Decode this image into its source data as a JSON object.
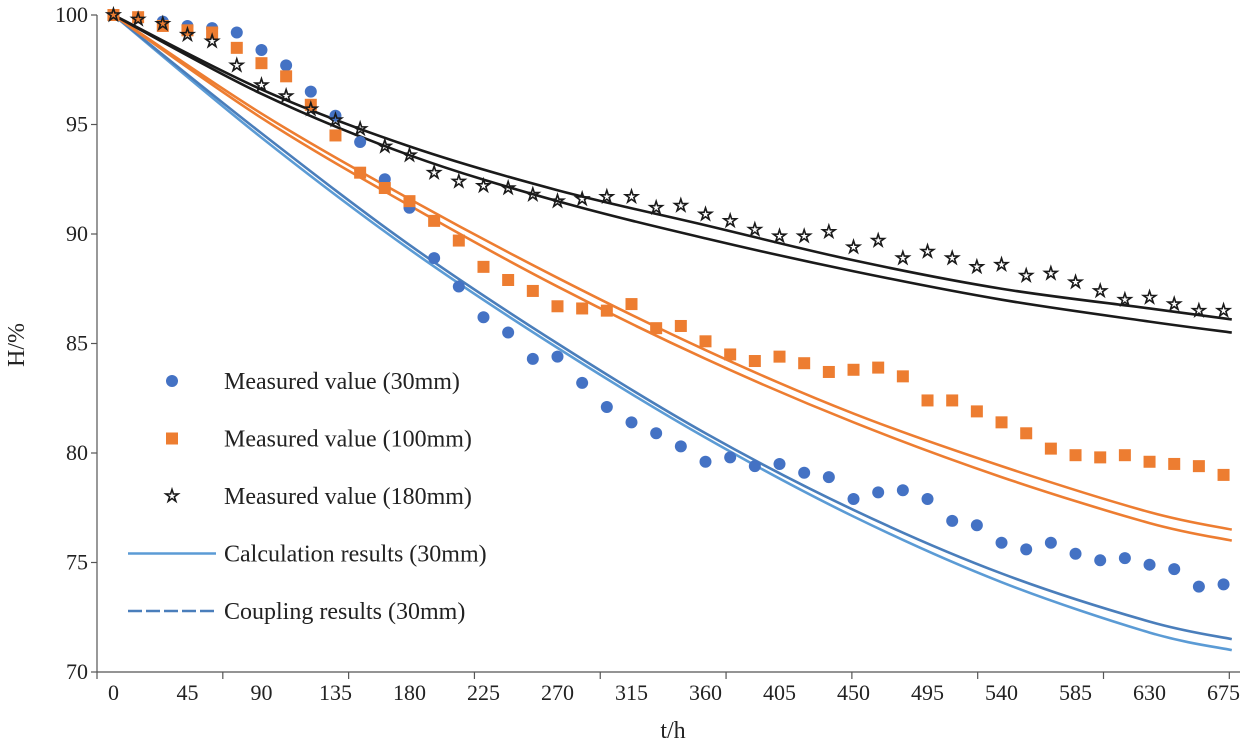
{
  "chart_data": {
    "type": "scatter",
    "xlabel": "t/h",
    "ylabel": "H/%",
    "xlim": [
      -10,
      685
    ],
    "ylim": [
      70,
      100
    ],
    "xticks": [
      0,
      45,
      90,
      135,
      180,
      225,
      270,
      315,
      360,
      405,
      450,
      495,
      540,
      585,
      630,
      675
    ],
    "xtick_labels": [
      "0",
      "45",
      "90",
      "135",
      "180",
      "225",
      "270",
      "315",
      "360",
      "405",
      "450",
      "495",
      "540",
      "585",
      "630",
      "675"
    ],
    "yticks": [
      70,
      75,
      80,
      85,
      90,
      95,
      100
    ],
    "ytick_labels": [
      "70",
      "75",
      "80",
      "85",
      "90",
      "95",
      "100"
    ],
    "grid": false,
    "legend_position": "left-center",
    "measured": [
      {
        "name": "Measured value (30mm)",
        "marker": "circle",
        "color": "#4472C4",
        "x": [
          0,
          15,
          30,
          45,
          60,
          75,
          90,
          105,
          120,
          135,
          150,
          165,
          180,
          195,
          210,
          225,
          240,
          255,
          270,
          285,
          300,
          315,
          330,
          345,
          360,
          375,
          390,
          405,
          420,
          435,
          450,
          465,
          480,
          495,
          510,
          525,
          540,
          555,
          570,
          585,
          600,
          615,
          630,
          645,
          660,
          675
        ],
        "y": [
          100,
          99.9,
          99.7,
          99.5,
          99.4,
          99.2,
          98.4,
          97.7,
          96.5,
          95.4,
          94.2,
          92.5,
          91.2,
          88.9,
          87.6,
          86.2,
          85.5,
          84.3,
          84.4,
          83.2,
          82.1,
          81.4,
          80.9,
          80.3,
          79.6,
          79.8,
          79.4,
          79.5,
          79.1,
          78.9,
          77.9,
          78.2,
          78.3,
          77.9,
          76.9,
          76.7,
          75.9,
          75.6,
          75.9,
          75.4,
          75.1,
          75.2,
          74.9,
          74.7,
          73.9,
          74.0
        ]
      },
      {
        "name": "Measured value (100mm)",
        "marker": "square",
        "color": "#ED7D31",
        "x": [
          0,
          15,
          30,
          45,
          60,
          75,
          90,
          105,
          120,
          135,
          150,
          165,
          180,
          195,
          210,
          225,
          240,
          255,
          270,
          285,
          300,
          315,
          330,
          345,
          360,
          375,
          390,
          405,
          420,
          435,
          450,
          465,
          480,
          495,
          510,
          525,
          540,
          555,
          570,
          585,
          600,
          615,
          630,
          645,
          660,
          675
        ],
        "y": [
          100,
          99.9,
          99.5,
          99.3,
          99.2,
          98.5,
          97.8,
          97.2,
          95.9,
          94.5,
          92.8,
          92.1,
          91.5,
          90.6,
          89.7,
          88.5,
          87.9,
          87.4,
          86.7,
          86.6,
          86.5,
          86.8,
          85.7,
          85.8,
          85.1,
          84.5,
          84.2,
          84.4,
          84.1,
          83.7,
          83.8,
          83.9,
          83.5,
          82.4,
          82.4,
          81.9,
          81.4,
          80.9,
          80.2,
          79.9,
          79.8,
          79.9,
          79.6,
          79.5,
          79.4,
          79.0
        ]
      },
      {
        "name": "Measured value (180mm)",
        "marker": "star",
        "color": "#1a1a1a",
        "x": [
          0,
          15,
          30,
          45,
          60,
          75,
          90,
          105,
          120,
          135,
          150,
          165,
          180,
          195,
          210,
          225,
          240,
          255,
          270,
          285,
          300,
          315,
          330,
          345,
          360,
          375,
          390,
          405,
          420,
          435,
          450,
          465,
          480,
          495,
          510,
          525,
          540,
          555,
          570,
          585,
          600,
          615,
          630,
          645,
          660,
          675
        ],
        "y": [
          100,
          99.8,
          99.6,
          99.1,
          98.8,
          97.7,
          96.8,
          96.3,
          95.7,
          95.2,
          94.8,
          94.0,
          93.6,
          92.8,
          92.4,
          92.2,
          92.1,
          91.8,
          91.5,
          91.6,
          91.7,
          91.7,
          91.2,
          91.3,
          90.9,
          90.6,
          90.2,
          89.9,
          89.9,
          90.1,
          89.4,
          89.7,
          88.9,
          89.2,
          88.9,
          88.5,
          88.6,
          88.1,
          88.2,
          87.8,
          87.4,
          87.0,
          87.1,
          86.8,
          86.5,
          86.5
        ]
      }
    ],
    "curves": [
      {
        "group": "30mm",
        "color": "#5B9BD5",
        "x": [
          0,
          90,
          180,
          270,
          360,
          450,
          540,
          630,
          680
        ],
        "y": [
          100,
          94.4,
          89.3,
          84.8,
          80.7,
          77.1,
          74.1,
          71.8,
          71.0
        ]
      },
      {
        "group": "30mm",
        "color": "#4A7EBB",
        "x": [
          0,
          90,
          180,
          270,
          360,
          450,
          540,
          630,
          680
        ],
        "y": [
          100,
          94.6,
          89.5,
          85.0,
          80.9,
          77.4,
          74.5,
          72.3,
          71.5
        ]
      },
      {
        "group": "100mm",
        "color": "#ED7D31",
        "x": [
          0,
          90,
          180,
          270,
          360,
          450,
          540,
          630,
          680
        ],
        "y": [
          100,
          95.5,
          91.6,
          88.0,
          84.7,
          81.8,
          79.4,
          77.3,
          76.5
        ]
      },
      {
        "group": "100mm",
        "color": "#ED7D31",
        "x": [
          0,
          90,
          180,
          270,
          360,
          450,
          540,
          630,
          680
        ],
        "y": [
          100,
          95.3,
          91.3,
          87.6,
          84.3,
          81.4,
          78.9,
          76.8,
          76.0
        ]
      },
      {
        "group": "180mm",
        "color": "#1a1a1a",
        "x": [
          0,
          90,
          180,
          270,
          360,
          450,
          540,
          630,
          680
        ],
        "y": [
          100,
          96.6,
          94.0,
          92.0,
          90.4,
          88.8,
          87.5,
          86.6,
          86.1
        ]
      },
      {
        "group": "180mm",
        "color": "#1a1a1a",
        "x": [
          0,
          90,
          180,
          270,
          360,
          450,
          540,
          630,
          680
        ],
        "y": [
          100,
          96.4,
          93.6,
          91.5,
          89.8,
          88.3,
          87.0,
          86.0,
          85.5
        ]
      }
    ],
    "legend": [
      {
        "label": "Measured value (30mm)",
        "kind": "circle",
        "color": "#4472C4"
      },
      {
        "label": "Measured value (100mm)",
        "kind": "square",
        "color": "#ED7D31"
      },
      {
        "label": "Measured value (180mm)",
        "kind": "star",
        "color": "#1a1a1a"
      },
      {
        "label": "Calculation results (30mm)",
        "kind": "line",
        "color": "#5B9BD5"
      },
      {
        "label": "Coupling results (30mm)",
        "kind": "dashed",
        "color": "#4A7EBB"
      }
    ]
  }
}
